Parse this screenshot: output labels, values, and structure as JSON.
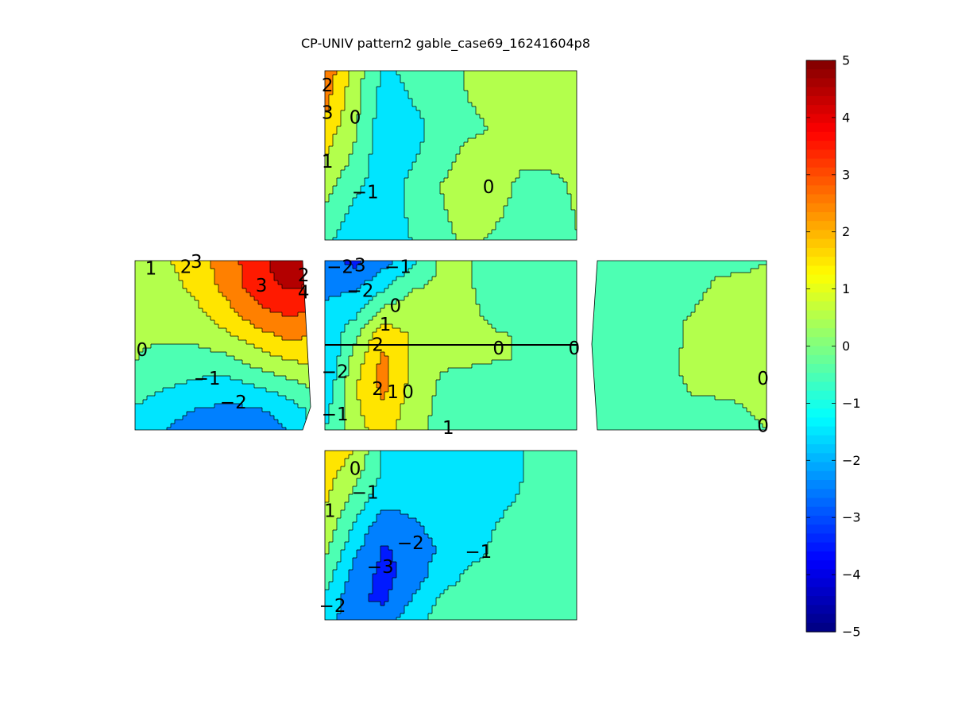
{
  "chart_data": {
    "type": "heatmap",
    "title": "CP-UNIV pattern2 gable_case69_16241604p8",
    "colormap": "jet",
    "clim": [
      -5,
      5
    ],
    "colorbar": {
      "position": "right",
      "ticks": [
        5,
        4,
        3,
        2,
        1,
        0,
        -1,
        -2,
        -3,
        -4,
        -5
      ],
      "tick_labels": [
        "5",
        "4",
        "3",
        "2",
        "1",
        "0",
        "−1",
        "−2",
        "−3",
        "−4",
        "−5"
      ]
    },
    "panels": [
      {
        "name": "top-face",
        "grid": [
          [
            2.6,
            0.5,
            -1.2,
            -0.8,
            -0.4,
            0.1,
            0.2,
            0.2,
            0.2,
            0.3
          ],
          [
            2.2,
            0.3,
            -1.4,
            -1.0,
            -0.6,
            0.0,
            0.2,
            0.2,
            0.2,
            0.3
          ],
          [
            1.5,
            0.1,
            -1.6,
            -1.3,
            -0.7,
            -0.2,
            0.1,
            0.2,
            0.2,
            0.3
          ],
          [
            0.9,
            -0.2,
            -1.7,
            -1.1,
            -0.5,
            0.4,
            0.3,
            0.2,
            0.2,
            0.3
          ],
          [
            0.3,
            -0.8,
            -1.5,
            -0.8,
            0.0,
            0.7,
            0.4,
            -0.3,
            -0.2,
            0.2
          ],
          [
            -0.3,
            -1.3,
            -1.4,
            -0.9,
            -0.2,
            0.5,
            0.1,
            -0.4,
            -0.3,
            0.1
          ],
          [
            -0.8,
            -1.8,
            -1.5,
            -1.0,
            -0.4,
            0.2,
            -0.2,
            -0.4,
            -0.3,
            0.0
          ]
        ],
        "labels": [
          {
            "text": "2",
            "x": 0.01,
            "y": 0.09
          },
          {
            "text": "3",
            "x": 0.01,
            "y": 0.25
          },
          {
            "text": "0",
            "x": 0.12,
            "y": 0.28
          },
          {
            "text": "1",
            "x": 0.01,
            "y": 0.54
          },
          {
            "text": "−1",
            "x": 0.16,
            "y": 0.72
          },
          {
            "text": "0",
            "x": 0.65,
            "y": 0.69
          }
        ]
      },
      {
        "name": "left-face",
        "grid": [
          [
            0.6,
            0.9,
            1.6,
            2.5,
            3.6,
            4.6,
            4.9
          ],
          [
            0.4,
            0.6,
            1.3,
            2.3,
            3.5,
            4.1,
            3.9
          ],
          [
            0.2,
            0.3,
            0.8,
            1.7,
            2.7,
            3.2,
            3.0
          ],
          [
            0.1,
            0.1,
            0.2,
            0.8,
            1.6,
            2.2,
            2.0
          ],
          [
            0.0,
            -0.3,
            -0.4,
            -0.3,
            0.4,
            1.0,
            1.2
          ],
          [
            -0.5,
            -0.9,
            -1.2,
            -1.4,
            -0.9,
            -0.4,
            0.3
          ],
          [
            -1.1,
            -1.6,
            -2.0,
            -2.2,
            -2.1,
            -1.6,
            -0.6
          ],
          [
            -1.6,
            -2.1,
            -2.6,
            -2.8,
            -2.7,
            -2.1,
            -0.9
          ]
        ],
        "labels": [
          {
            "text": "1",
            "x": 0.09,
            "y": 0.05
          },
          {
            "text": "2",
            "x": 0.29,
            "y": 0.04
          },
          {
            "text": "3",
            "x": 0.35,
            "y": 0.01
          },
          {
            "text": "3",
            "x": 0.72,
            "y": 0.15
          },
          {
            "text": "2",
            "x": 0.96,
            "y": 0.09
          },
          {
            "text": "4",
            "x": 0.96,
            "y": 0.19
          },
          {
            "text": "0",
            "x": 0.04,
            "y": 0.53
          },
          {
            "text": "−1",
            "x": 0.41,
            "y": 0.7
          },
          {
            "text": "−2",
            "x": 0.56,
            "y": 0.84
          }
        ]
      },
      {
        "name": "front-face",
        "grid": [
          [
            -2.6,
            -3.2,
            -2.3,
            -1.2,
            0.1,
            0.1,
            -0.5,
            -0.6,
            -0.6,
            -0.3
          ],
          [
            -2.2,
            -2.2,
            -1.2,
            -0.1,
            0.2,
            0.1,
            -0.4,
            -0.7,
            -0.7,
            -0.4
          ],
          [
            -1.8,
            -1.3,
            0.3,
            0.5,
            0.2,
            0.2,
            -0.3,
            -0.5,
            -0.5,
            -0.3
          ],
          [
            -1.9,
            -0.2,
            1.7,
            0.9,
            0.2,
            0.3,
            0.1,
            -0.1,
            -0.1,
            0.0
          ],
          [
            -2.0,
            0.5,
            2.3,
            0.7,
            0.1,
            0.1,
            0.0,
            0.0,
            0.0,
            0.0
          ],
          [
            -1.6,
            0.9,
            2.3,
            0.7,
            -0.1,
            -0.3,
            -0.2,
            -0.3,
            -0.3,
            -0.2
          ],
          [
            -1.2,
            0.8,
            1.9,
            0.5,
            -0.2,
            -0.6,
            -0.6,
            -0.5,
            -0.4,
            -0.3
          ],
          [
            -0.9,
            0.6,
            1.4,
            0.3,
            -0.3,
            -0.8,
            -0.8,
            -0.6,
            -0.5,
            -0.3
          ]
        ],
        "labels": [
          {
            "text": "−2",
            "x": 0.06,
            "y": 0.04
          },
          {
            "text": "3",
            "x": 0.14,
            "y": 0.03
          },
          {
            "text": "−1",
            "x": 0.29,
            "y": 0.04
          },
          {
            "text": "−2",
            "x": 0.14,
            "y": 0.18
          },
          {
            "text": "0",
            "x": 0.28,
            "y": 0.27
          },
          {
            "text": "1",
            "x": 0.24,
            "y": 0.38
          },
          {
            "text": "2",
            "x": 0.21,
            "y": 0.5
          },
          {
            "text": "0",
            "x": 0.69,
            "y": 0.52
          },
          {
            "text": "0",
            "x": 0.99,
            "y": 0.52
          },
          {
            "text": "−2",
            "x": 0.04,
            "y": 0.66
          },
          {
            "text": "2",
            "x": 0.21,
            "y": 0.76
          },
          {
            "text": "1",
            "x": 0.27,
            "y": 0.78
          },
          {
            "text": "0",
            "x": 0.33,
            "y": 0.78
          },
          {
            "text": "−1",
            "x": 0.04,
            "y": 0.91
          },
          {
            "text": "1",
            "x": 0.49,
            "y": 0.99
          }
        ]
      },
      {
        "name": "right-face",
        "grid": [
          [
            -0.6,
            -0.5,
            -0.5,
            -0.4,
            -0.3,
            -0.2,
            -0.1,
            0.0
          ],
          [
            -0.5,
            -0.4,
            -0.3,
            -0.3,
            -0.2,
            0.2,
            0.2,
            0.2
          ],
          [
            -0.5,
            -0.4,
            -0.3,
            -0.2,
            0.1,
            0.3,
            0.3,
            0.3
          ],
          [
            -0.4,
            -0.3,
            -0.2,
            -0.1,
            0.1,
            0.3,
            0.3,
            0.2
          ],
          [
            -0.4,
            -0.3,
            -0.2,
            -0.2,
            0.2,
            0.3,
            0.2,
            0.2
          ],
          [
            -0.3,
            -0.2,
            -0.2,
            -0.2,
            -0.1,
            -0.1,
            0.0,
            0.1
          ],
          [
            -0.3,
            -0.2,
            -0.2,
            -0.2,
            -0.2,
            -0.2,
            -0.1,
            0.0
          ]
        ],
        "labels": [
          {
            "text": "0",
            "x": 0.98,
            "y": 0.7
          },
          {
            "text": "0",
            "x": 0.98,
            "y": 0.98
          }
        ]
      },
      {
        "name": "bottom-face",
        "grid": [
          [
            1.8,
            0.9,
            -1.2,
            -1.5,
            -1.3,
            -1.2,
            -1.2,
            -1.0,
            -1.0,
            -0.9
          ],
          [
            1.4,
            0.2,
            -1.2,
            -1.4,
            -1.3,
            -1.3,
            -1.2,
            -1.0,
            -1.0,
            -0.9
          ],
          [
            1.0,
            -0.4,
            -1.8,
            -1.6,
            -1.4,
            -1.3,
            -1.2,
            -0.9,
            -0.8,
            -0.8
          ],
          [
            0.6,
            -1.2,
            -2.6,
            -2.2,
            -1.6,
            -1.2,
            -1.0,
            -0.6,
            -0.7,
            -0.8
          ],
          [
            0.1,
            -1.8,
            -3.1,
            -2.7,
            -1.9,
            -1.2,
            -0.9,
            -0.8,
            -0.7,
            -0.6
          ],
          [
            -0.6,
            -2.4,
            -3.3,
            -2.7,
            -1.4,
            -0.9,
            -0.8,
            -0.7,
            -0.7,
            -0.6
          ],
          [
            -1.2,
            -2.8,
            -3.2,
            -2.0,
            -0.9,
            -0.6,
            -0.6,
            -0.6,
            -0.5,
            -0.5
          ],
          [
            -1.6,
            -2.7,
            -2.3,
            -1.3,
            -0.6,
            -0.5,
            -0.4,
            -0.4,
            -0.4,
            -0.3
          ]
        ],
        "labels": [
          {
            "text": "0",
            "x": 0.12,
            "y": 0.11
          },
          {
            "text": "−1",
            "x": 0.16,
            "y": 0.25
          },
          {
            "text": "1",
            "x": 0.02,
            "y": 0.36
          },
          {
            "text": "−2",
            "x": 0.34,
            "y": 0.55
          },
          {
            "text": "−1",
            "x": 0.61,
            "y": 0.6
          },
          {
            "text": "−3",
            "x": 0.22,
            "y": 0.69
          },
          {
            "text": "−2",
            "x": 0.03,
            "y": 0.92
          }
        ]
      }
    ]
  }
}
